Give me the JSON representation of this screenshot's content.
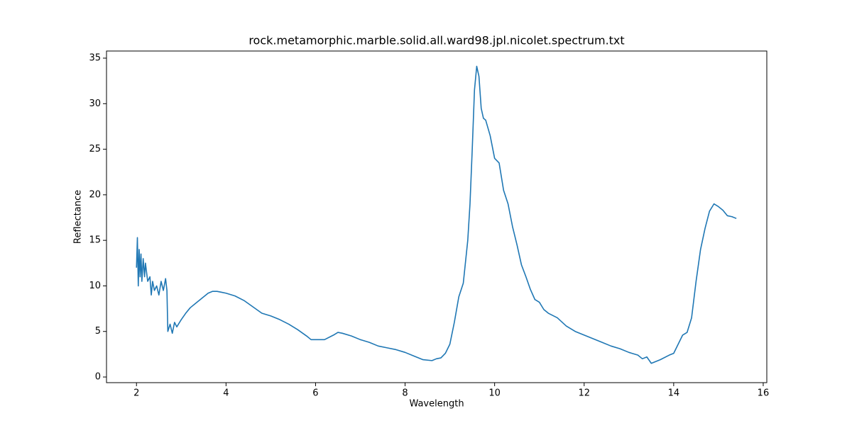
{
  "chart_data": {
    "type": "line",
    "title": "rock.metamorphic.marble.solid.all.ward98.jpl.nicolet.spectrum.txt",
    "x_label": "Wavelength",
    "y_label": "Reflectance",
    "xlim": [
      1.33,
      16.08
    ],
    "ylim": [
      -0.62,
      35.78
    ],
    "xticks": [
      2,
      4,
      6,
      8,
      10,
      12,
      14,
      16
    ],
    "yticks": [
      0,
      5,
      10,
      15,
      20,
      25,
      30,
      35
    ],
    "grid": false,
    "series": [
      {
        "color": "#1f77b4",
        "x": [
          2.0,
          2.02,
          2.04,
          2.06,
          2.08,
          2.1,
          2.12,
          2.15,
          2.18,
          2.2,
          2.25,
          2.3,
          2.33,
          2.36,
          2.4,
          2.45,
          2.5,
          2.55,
          2.6,
          2.65,
          2.68,
          2.7,
          2.75,
          2.8,
          2.85,
          2.9,
          3.0,
          3.1,
          3.2,
          3.3,
          3.4,
          3.5,
          3.6,
          3.7,
          3.8,
          3.9,
          4.0,
          4.2,
          4.4,
          4.6,
          4.8,
          5.0,
          5.2,
          5.4,
          5.6,
          5.8,
          5.9,
          6.0,
          6.2,
          6.4,
          6.5,
          6.6,
          6.8,
          7.0,
          7.2,
          7.4,
          7.6,
          7.8,
          8.0,
          8.2,
          8.4,
          8.6,
          8.7,
          8.8,
          8.9,
          9.0,
          9.1,
          9.2,
          9.3,
          9.4,
          9.45,
          9.5,
          9.55,
          9.6,
          9.65,
          9.7,
          9.75,
          9.8,
          9.9,
          10.0,
          10.1,
          10.15,
          10.2,
          10.3,
          10.4,
          10.5,
          10.6,
          10.7,
          10.8,
          10.9,
          11.0,
          11.1,
          11.2,
          11.4,
          11.6,
          11.8,
          12.0,
          12.2,
          12.4,
          12.6,
          12.8,
          13.0,
          13.2,
          13.3,
          13.4,
          13.5,
          13.7,
          13.9,
          14.0,
          14.1,
          14.2,
          14.3,
          14.4,
          14.5,
          14.6,
          14.7,
          14.8,
          14.9,
          15.0,
          15.1,
          15.2,
          15.3,
          15.4
        ],
        "values": [
          12,
          15.3,
          10,
          14,
          11,
          13.5,
          10.5,
          13,
          11,
          12.5,
          10.5,
          11,
          9,
          10.5,
          9.5,
          10,
          9,
          10.5,
          9.5,
          10.8,
          9.5,
          5,
          5.8,
          4.8,
          6,
          5.5,
          6.3,
          7.0,
          7.6,
          8.0,
          8.4,
          8.8,
          9.2,
          9.4,
          9.4,
          9.3,
          9.2,
          8.9,
          8.4,
          7.7,
          7.0,
          6.7,
          6.3,
          5.8,
          5.2,
          4.5,
          4.1,
          4.1,
          4.1,
          4.6,
          4.9,
          4.8,
          4.5,
          4.1,
          3.8,
          3.4,
          3.2,
          3.0,
          2.7,
          2.3,
          1.9,
          1.8,
          2.0,
          2.1,
          2.6,
          3.6,
          6.0,
          8.8,
          10.3,
          15,
          19,
          25,
          31.5,
          34.1,
          33,
          29.5,
          28.4,
          28.2,
          26.5,
          24,
          23.5,
          22,
          20.5,
          19,
          16.5,
          14.5,
          12.3,
          11,
          9.6,
          8.5,
          8.2,
          7.4,
          7.0,
          6.5,
          5.6,
          5.0,
          4.6,
          4.2,
          3.8,
          3.4,
          3.1,
          2.7,
          2.4,
          2.0,
          2.2,
          1.5,
          1.9,
          2.4,
          2.6,
          3.6,
          4.6,
          4.9,
          6.5,
          10.5,
          14,
          16.3,
          18.2,
          19.0,
          18.7,
          18.3,
          17.7,
          17.6,
          17.4
        ]
      }
    ]
  }
}
